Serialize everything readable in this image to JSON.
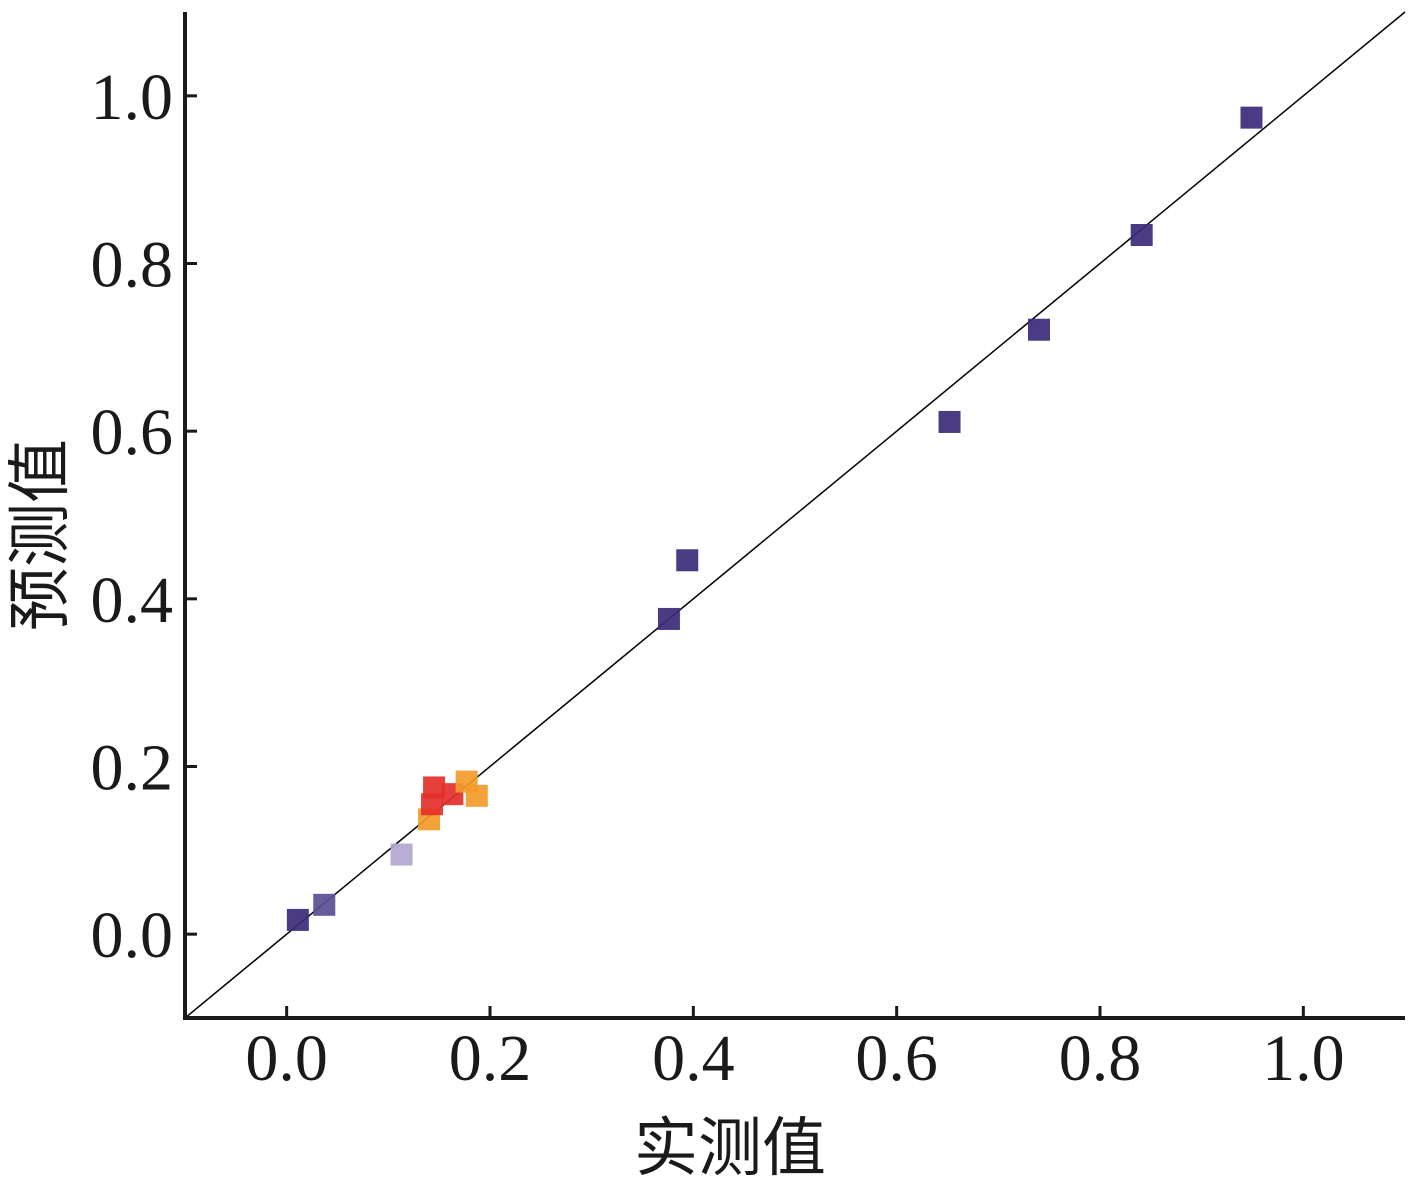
{
  "chart_data": {
    "type": "scatter",
    "xlabel": "实测值",
    "ylabel": "预测值",
    "xlim": [
      -0.1,
      1.1
    ],
    "ylim": [
      -0.1,
      1.1
    ],
    "xticks": [
      "0.0",
      "0.2",
      "0.4",
      "0.6",
      "0.8",
      "1.0"
    ],
    "yticks": [
      "0.0",
      "0.2",
      "0.4",
      "0.6",
      "0.8",
      "1.0"
    ],
    "reference_line": {
      "from": [
        -0.1,
        -0.1
      ],
      "to": [
        1.1,
        1.1
      ],
      "color": "#000000"
    },
    "points": [
      {
        "x": 0.011,
        "y": 0.017,
        "color": "#3b2a7a"
      },
      {
        "x": 0.037,
        "y": 0.035,
        "color": "#5a4f95"
      },
      {
        "x": 0.113,
        "y": 0.095,
        "color": "#b3a6cf"
      },
      {
        "x": 0.14,
        "y": 0.137,
        "color": "#f39a2a"
      },
      {
        "x": 0.143,
        "y": 0.155,
        "color": "#e4302b"
      },
      {
        "x": 0.145,
        "y": 0.175,
        "color": "#e4302b"
      },
      {
        "x": 0.163,
        "y": 0.167,
        "color": "#e4302b"
      },
      {
        "x": 0.177,
        "y": 0.182,
        "color": "#f39a2a"
      },
      {
        "x": 0.187,
        "y": 0.165,
        "color": "#f39a2a"
      },
      {
        "x": 0.376,
        "y": 0.376,
        "color": "#3b2a7a"
      },
      {
        "x": 0.394,
        "y": 0.446,
        "color": "#3b2a7a"
      },
      {
        "x": 0.652,
        "y": 0.611,
        "color": "#3b2a7a"
      },
      {
        "x": 0.74,
        "y": 0.721,
        "color": "#3b2a7a"
      },
      {
        "x": 0.841,
        "y": 0.834,
        "color": "#3b2a7a"
      },
      {
        "x": 0.949,
        "y": 0.974,
        "color": "#3b2a7a"
      }
    ]
  }
}
